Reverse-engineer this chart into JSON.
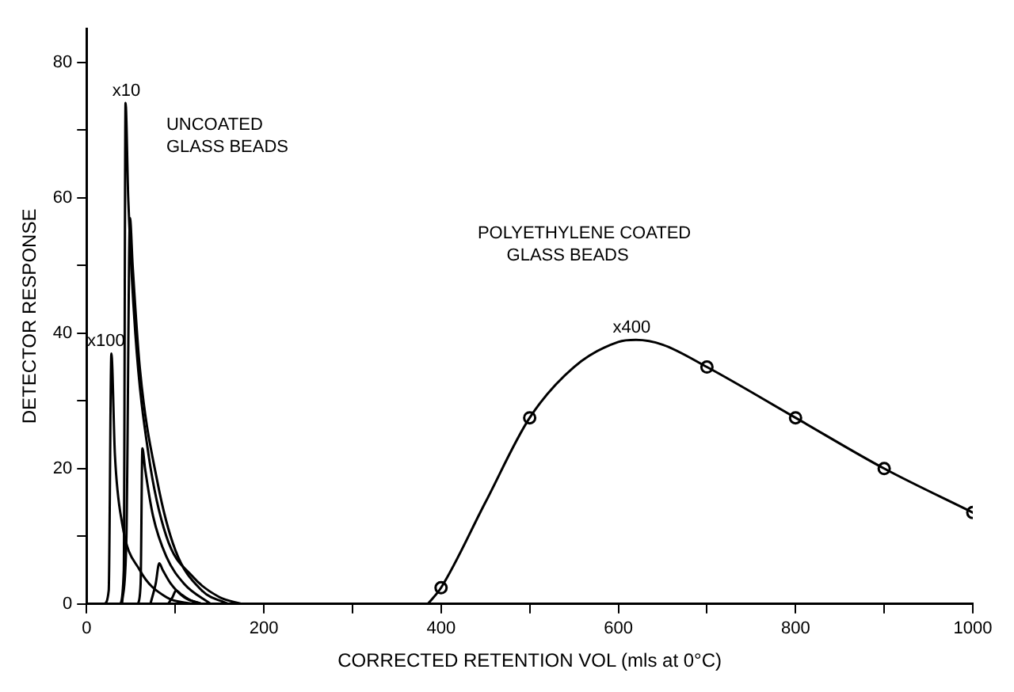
{
  "chart_data": {
    "type": "line",
    "xlabel": "CORRECTED RETENTION VOL (mls at 0°C)",
    "ylabel": "DETECTOR RESPONSE",
    "xlim": [
      0,
      1000
    ],
    "ylim": [
      0,
      85
    ],
    "xticks": [
      0,
      {
        "value": 100,
        "label": null
      },
      200,
      {
        "value": 300,
        "label": null
      },
      400,
      {
        "value": 500,
        "label": null
      },
      600,
      {
        "value": 700,
        "label": null
      },
      800,
      {
        "value": 900,
        "label": null
      },
      1000
    ],
    "yticks": [
      0,
      {
        "value": 10,
        "label": null
      },
      20,
      {
        "value": 30,
        "label": null
      },
      40,
      {
        "value": 50,
        "label": null
      },
      60,
      {
        "value": 70,
        "label": null
      },
      80
    ],
    "grid": false,
    "legend": false,
    "line_style": "solid",
    "series": [
      {
        "color": "#000000",
        "marker": "none",
        "x": [
          20,
          25,
          28,
          32,
          40,
          60,
          90,
          120
        ],
        "values": [
          0,
          2,
          37,
          22,
          12,
          5,
          1,
          0
        ]
      },
      {
        "color": "#000000",
        "marker": "none",
        "x": [
          38,
          42,
          44,
          47,
          55,
          70,
          90,
          120,
          150,
          175
        ],
        "values": [
          0,
          5,
          74,
          60,
          40,
          22,
          10,
          4,
          1,
          0
        ]
      },
      {
        "color": "#000000",
        "marker": "none",
        "x": [
          40,
          45,
          49,
          52,
          60,
          80,
          100,
          130,
          160
        ],
        "values": [
          0,
          10,
          57,
          50,
          35,
          18,
          8,
          2,
          0
        ]
      },
      {
        "color": "#000000",
        "marker": "none",
        "x": [
          58,
          61,
          63,
          66,
          75,
          90,
          110,
          140
        ],
        "values": [
          0,
          3,
          23,
          20,
          13,
          7,
          3,
          0
        ]
      },
      {
        "color": "#000000",
        "marker": "none",
        "x": [
          72,
          78,
          82,
          86,
          95,
          110,
          130
        ],
        "values": [
          0,
          3,
          6,
          5,
          3,
          1,
          0
        ]
      },
      {
        "color": "#000000",
        "marker": "none",
        "x": [
          92,
          97,
          101,
          106,
          115,
          130
        ],
        "values": [
          0,
          1,
          2,
          1.5,
          0.7,
          0
        ]
      },
      {
        "color": "#000000",
        "marker": "none",
        "x": [
          385,
          400,
          450,
          500,
          550,
          600,
          620,
          650,
          700,
          800,
          900,
          1000
        ],
        "values": [
          0,
          2.4,
          15,
          27.5,
          35,
          38.7,
          39,
          38.3,
          35,
          27.5,
          20,
          13.5
        ]
      },
      {
        "type": "scatter",
        "color": "#000000",
        "marker": "circle",
        "x": [
          400,
          500,
          700,
          800,
          900,
          1000
        ],
        "values": [
          2.4,
          27.5,
          35,
          27.5,
          20,
          13.5
        ]
      }
    ],
    "annotations": [
      {
        "text": "x10",
        "x": 45,
        "y": 74
      },
      {
        "text": "x100",
        "x": 22,
        "y": 37
      },
      {
        "text": "x400",
        "x": 615,
        "y": 39
      },
      "UNCOATED\nGLASS BEADS",
      "POLYETHYLENE COATED\n      GLASS BEADS"
    ]
  }
}
